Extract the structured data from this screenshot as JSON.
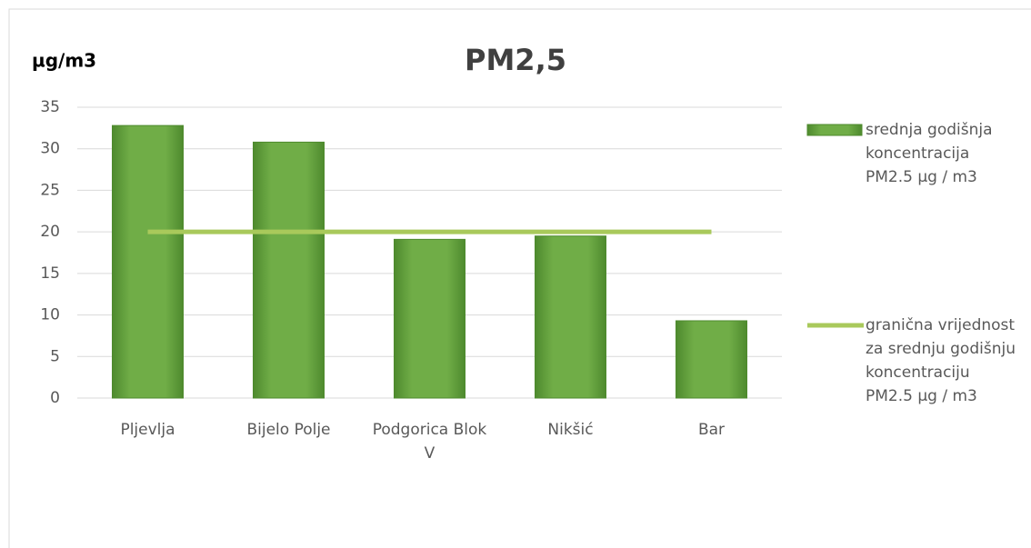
{
  "chart_data": {
    "type": "bar",
    "title": "PM2,5",
    "y_label": "µg/m3",
    "categories": [
      "Pljevlja",
      "Bijelo Polje",
      "Podgorica Blok V",
      "Nikšić",
      "Bar"
    ],
    "series": [
      {
        "name": "srednja godišnja koncentracija PM2.5 µg / m3",
        "type": "bar",
        "color": "#70ad47",
        "values": [
          32.8,
          30.8,
          19.1,
          19.5,
          9.3
        ]
      },
      {
        "name": "granična vrijednost za srednju godišnju koncentraciju PM2.5 µg / m3",
        "type": "line",
        "color": "#a9c95b",
        "values": [
          20,
          20,
          20,
          20,
          20
        ]
      }
    ],
    "ylim": [
      0,
      35
    ],
    "yticks": [
      0,
      5,
      10,
      15,
      20,
      25,
      30,
      35
    ],
    "grid": true,
    "legend": "right"
  }
}
